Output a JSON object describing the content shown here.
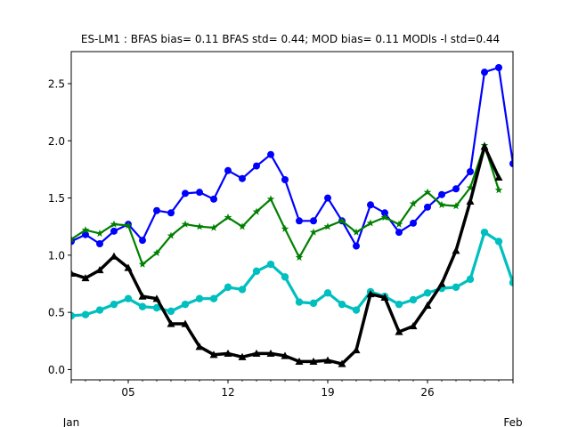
{
  "chart_data": {
    "type": "line",
    "title": "ES-LM1   : BFAS bias= 0.11 BFAS std= 0.44; MOD bias= 0.11 MODls -l std=0.44",
    "xlabel": "",
    "ylabel": "",
    "x_ticks": [
      "05",
      "12",
      "19",
      "26"
    ],
    "x_month_labels": [
      "Jan",
      "Feb"
    ],
    "y_ticks": [
      "0.0",
      "0.5",
      "1.0",
      "1.5",
      "2.0",
      "2.5"
    ],
    "xlim": [
      1,
      32
    ],
    "ylim": [
      -0.09,
      2.78
    ],
    "grid": false,
    "series": [
      {
        "color": "#0000ff",
        "marker": "circle",
        "x": [
          1,
          2,
          3,
          4,
          5,
          6,
          7,
          8,
          9,
          10,
          11,
          12,
          13,
          14,
          15,
          16,
          17,
          18,
          19,
          20,
          21,
          22,
          23,
          24,
          25,
          26,
          27,
          28,
          29,
          30,
          31,
          32
        ],
        "values": [
          1.12,
          1.18,
          1.1,
          1.21,
          1.27,
          1.13,
          1.39,
          1.37,
          1.54,
          1.55,
          1.49,
          1.74,
          1.67,
          1.78,
          1.88,
          1.66,
          1.3,
          1.3,
          1.5,
          1.3,
          1.08,
          1.44,
          1.37,
          1.2,
          1.28,
          1.42,
          1.53,
          1.58,
          1.73,
          2.6,
          2.64,
          1.8
        ]
      },
      {
        "color": "#008000",
        "marker": "star",
        "x": [
          1,
          2,
          3,
          4,
          5,
          6,
          7,
          8,
          9,
          10,
          11,
          12,
          13,
          14,
          15,
          16,
          17,
          18,
          19,
          20,
          21,
          22,
          23,
          24,
          25,
          26,
          27,
          28,
          29,
          30,
          31
        ],
        "values": [
          1.14,
          1.22,
          1.19,
          1.27,
          1.26,
          0.92,
          1.02,
          1.17,
          1.27,
          1.25,
          1.24,
          1.33,
          1.25,
          1.38,
          1.49,
          1.23,
          0.98,
          1.2,
          1.25,
          1.3,
          1.2,
          1.28,
          1.33,
          1.27,
          1.45,
          1.55,
          1.44,
          1.43,
          1.59,
          1.96,
          1.57
        ]
      },
      {
        "color": "#00bfbf",
        "marker": "circle",
        "x": [
          1,
          2,
          3,
          4,
          5,
          6,
          7,
          8,
          9,
          10,
          11,
          12,
          13,
          14,
          15,
          16,
          17,
          18,
          19,
          20,
          21,
          22,
          23,
          24,
          25,
          26,
          27,
          28,
          29,
          30,
          31,
          32
        ],
        "values": [
          0.47,
          0.48,
          0.52,
          0.57,
          0.62,
          0.55,
          0.54,
          0.51,
          0.57,
          0.62,
          0.62,
          0.72,
          0.7,
          0.86,
          0.92,
          0.81,
          0.59,
          0.58,
          0.67,
          0.57,
          0.52,
          0.68,
          0.64,
          0.57,
          0.61,
          0.67,
          0.71,
          0.72,
          0.79,
          1.2,
          1.12,
          0.76
        ]
      },
      {
        "color": "#000000",
        "marker": "triangle",
        "x": [
          1,
          2,
          3,
          4,
          5,
          6,
          7,
          8,
          9,
          10,
          11,
          12,
          13,
          14,
          15,
          16,
          17,
          18,
          19,
          20,
          21,
          22,
          23,
          24,
          25,
          26,
          27,
          28,
          29,
          30,
          31
        ],
        "values": [
          0.84,
          0.8,
          0.87,
          0.99,
          0.89,
          0.64,
          0.62,
          0.4,
          0.4,
          0.2,
          0.13,
          0.14,
          0.11,
          0.14,
          0.14,
          0.12,
          0.07,
          0.07,
          0.08,
          0.05,
          0.17,
          0.66,
          0.63,
          0.33,
          0.38,
          0.56,
          0.75,
          1.04,
          1.47,
          1.95,
          1.68
        ]
      }
    ]
  }
}
